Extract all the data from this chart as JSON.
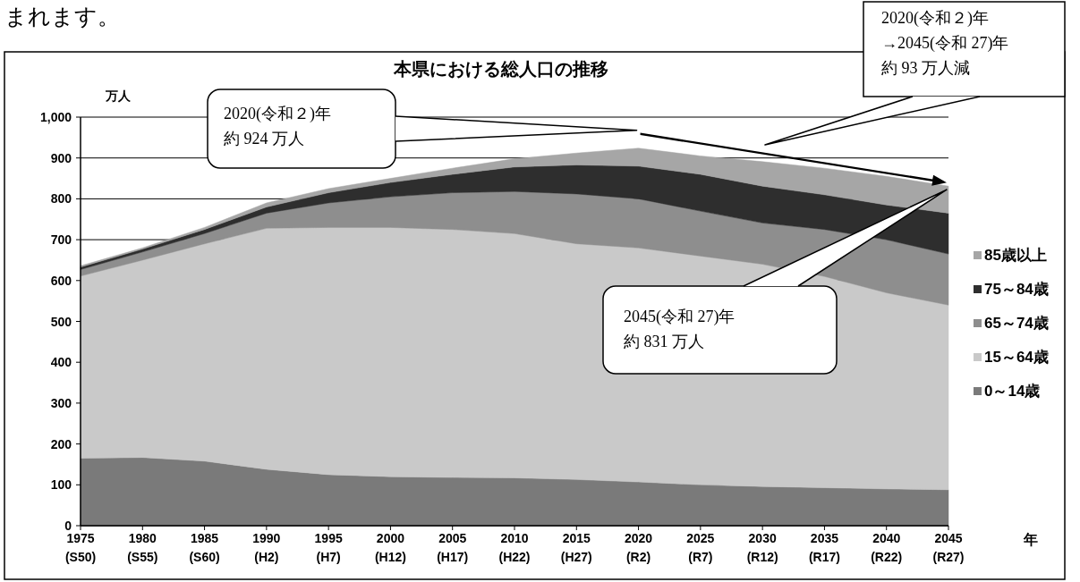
{
  "chart_data": {
    "type": "area",
    "stacked": true,
    "title": "本県における総人口の推移",
    "ylabel": "万人",
    "xlabel": "年",
    "categories": [
      "1975\n(S50)",
      "1980\n(S55)",
      "1985\n(S60)",
      "1990\n(H2)",
      "1995\n(H7)",
      "2000\n(H12)",
      "2005\n(H17)",
      "2010\n(H22)",
      "2015\n(H27)",
      "2020\n(R2)",
      "2025\n(R7)",
      "2030\n(R12)",
      "2035\n(R17)",
      "2040\n(R22)",
      "2045\n(R27)"
    ],
    "ylim": [
      0,
      1000
    ],
    "yticks": [
      0,
      100,
      200,
      300,
      400,
      500,
      600,
      700,
      800,
      900,
      {
        "value": 1000,
        "label": "1,000"
      }
    ],
    "grid": "y",
    "legend": "right",
    "series": [
      {
        "name": "0～14歳",
        "color": "#7a7a7a",
        "values": [
          165,
          167,
          158,
          138,
          125,
          120,
          118,
          117,
          113,
          107,
          100,
          96,
          93,
          90,
          88
        ]
      },
      {
        "name": "15～64歳",
        "color": "#c9c9c9",
        "values": [
          446,
          483,
          532,
          590,
          605,
          610,
          607,
          598,
          577,
          573,
          560,
          544,
          517,
          480,
          452
        ]
      },
      {
        "name": "65～74歳",
        "color": "#8e8e8e",
        "values": [
          16,
          20,
          25,
          37,
          60,
          75,
          90,
          103,
          122,
          120,
          110,
          101,
          115,
          130,
          125
        ]
      },
      {
        "name": "75～84歳",
        "color": "#2e2e2e",
        "values": [
          6,
          7,
          10,
          15,
          25,
          35,
          45,
          60,
          71,
          80,
          90,
          90,
          85,
          85,
          100
        ]
      },
      {
        "name": "85歳以上",
        "color": "#a6a6a6",
        "values": [
          3,
          3,
          5,
          10,
          10,
          10,
          15,
          20,
          29,
          44,
          45,
          60,
          65,
          70,
          66
        ]
      }
    ],
    "annotations": [
      "まれます。",
      "2020(令和２)年",
      "約 924 万人",
      "2045(令和 27)年",
      "約 831 万人",
      "2020(令和２)年",
      "→2045(令和 27)年",
      "約 93 万人減"
    ]
  }
}
